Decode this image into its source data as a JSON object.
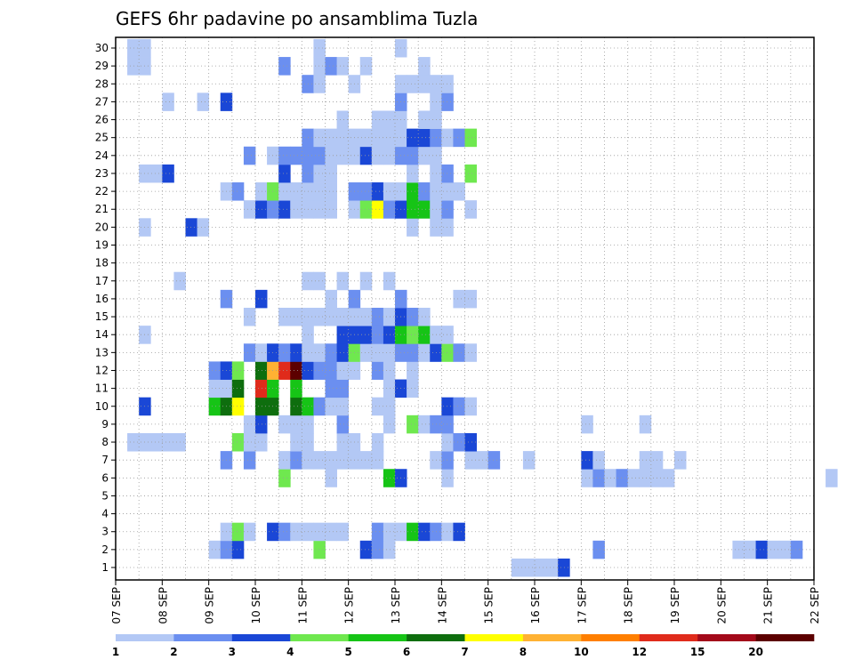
{
  "chart_data": {
    "type": "heatmap",
    "title": "GEFS 6hr padavine po ansamblima Tuzla",
    "y_ticks": [
      "1",
      "2",
      "3",
      "4",
      "5",
      "6",
      "7",
      "8",
      "9",
      "10",
      "11",
      "12",
      "13",
      "14",
      "15",
      "16",
      "17",
      "18",
      "19",
      "20",
      "21",
      "22",
      "23",
      "24",
      "25",
      "26",
      "27",
      "28",
      "29",
      "30"
    ],
    "x_ticks": [
      "07 SEP",
      "08 SEP",
      "09 SEP",
      "10 SEP",
      "11 SEP",
      "12 SEP",
      "13 SEP",
      "14 SEP",
      "15 SEP",
      "16 SEP",
      "17 SEP",
      "18 SEP",
      "19 SEP",
      "20 SEP",
      "21 SEP",
      "22 SEP"
    ],
    "x_range_days": [
      7,
      22
    ],
    "y_range_members": [
      0,
      30
    ],
    "grid": "dotted",
    "colorbar": {
      "labels": [
        "1",
        "2",
        "3",
        "4",
        "5",
        "6",
        "7",
        "8",
        "10",
        "12",
        "15",
        "20"
      ],
      "colors": [
        "#b3c8f5",
        "#6b8ff0",
        "#1a47d6",
        "#6fe84f",
        "#16c416",
        "#0e6e0e",
        "#ffff00",
        "#ffb233",
        "#ff7f00",
        "#e02b1b",
        "#a3091a",
        "#5c0000"
      ]
    },
    "cell_steps_per_day": 4,
    "cells": [
      [
        1,
        34,
        1
      ],
      [
        1,
        35,
        1
      ],
      [
        1,
        36,
        1
      ],
      [
        1,
        37,
        1
      ],
      [
        1,
        38,
        3
      ],
      [
        1,
        88,
        1
      ],
      [
        1,
        89,
        1
      ],
      [
        1,
        90,
        1
      ],
      [
        1,
        91,
        2
      ],
      [
        1,
        93,
        3
      ],
      [
        1,
        94,
        2
      ],
      [
        1,
        99,
        4
      ],
      [
        1,
        107,
        1
      ],
      [
        1,
        108,
        1
      ],
      [
        1,
        109,
        4
      ],
      [
        1,
        111,
        4
      ],
      [
        1,
        112,
        3
      ],
      [
        1,
        114,
        3
      ],
      [
        1,
        115,
        2
      ],
      [
        1,
        116,
        2
      ],
      [
        1,
        131,
        1
      ],
      [
        1,
        147,
        3
      ],
      [
        1,
        151,
        3
      ],
      [
        1,
        152,
        2
      ],
      [
        1,
        153,
        2
      ],
      [
        2,
        8,
        1
      ],
      [
        2,
        9,
        2
      ],
      [
        2,
        10,
        3
      ],
      [
        2,
        17,
        4
      ],
      [
        2,
        21,
        3
      ],
      [
        2,
        22,
        2
      ],
      [
        2,
        23,
        1
      ],
      [
        2,
        41,
        2
      ],
      [
        2,
        53,
        1
      ],
      [
        2,
        54,
        1
      ],
      [
        2,
        55,
        3
      ],
      [
        2,
        56,
        1
      ],
      [
        2,
        57,
        1
      ],
      [
        2,
        58,
        2
      ],
      [
        2,
        97,
        1
      ],
      [
        2,
        99,
        4
      ],
      [
        2,
        106,
        4
      ],
      [
        2,
        108,
        2
      ],
      [
        2,
        110,
        1
      ],
      [
        2,
        112,
        1
      ],
      [
        2,
        113,
        1
      ],
      [
        2,
        133,
        2
      ],
      [
        3,
        9,
        1
      ],
      [
        3,
        10,
        4
      ],
      [
        3,
        11,
        1
      ],
      [
        3,
        13,
        3
      ],
      [
        3,
        14,
        2
      ],
      [
        3,
        15,
        1
      ],
      [
        3,
        16,
        1
      ],
      [
        3,
        17,
        1
      ],
      [
        3,
        18,
        1
      ],
      [
        3,
        19,
        1
      ],
      [
        3,
        22,
        2
      ],
      [
        3,
        23,
        1
      ],
      [
        3,
        24,
        1
      ],
      [
        3,
        25,
        5
      ],
      [
        3,
        26,
        3
      ],
      [
        3,
        27,
        2
      ],
      [
        3,
        28,
        1
      ],
      [
        3,
        29,
        3
      ],
      [
        6,
        14,
        4
      ],
      [
        6,
        18,
        1
      ],
      [
        6,
        23,
        5
      ],
      [
        6,
        24,
        3
      ],
      [
        6,
        28,
        1
      ],
      [
        6,
        40,
        1
      ],
      [
        6,
        41,
        2
      ],
      [
        6,
        42,
        1
      ],
      [
        6,
        43,
        2
      ],
      [
        6,
        44,
        1
      ],
      [
        6,
        45,
        1
      ],
      [
        6,
        46,
        1
      ],
      [
        6,
        47,
        1
      ],
      [
        6,
        61,
        1
      ],
      [
        6,
        65,
        2
      ],
      [
        6,
        84,
        1
      ],
      [
        6,
        85,
        1
      ],
      [
        6,
        86,
        2
      ],
      [
        6,
        87,
        2
      ],
      [
        6,
        88,
        2
      ],
      [
        6,
        89,
        4
      ],
      [
        6,
        92,
        3
      ],
      [
        6,
        96,
        1
      ],
      [
        6,
        97,
        1
      ],
      [
        6,
        98,
        1
      ],
      [
        6,
        115,
        1
      ],
      [
        6,
        117,
        1
      ],
      [
        7,
        9,
        2
      ],
      [
        7,
        11,
        2
      ],
      [
        7,
        14,
        1
      ],
      [
        7,
        15,
        2
      ],
      [
        7,
        16,
        1
      ],
      [
        7,
        17,
        1
      ],
      [
        7,
        18,
        1
      ],
      [
        7,
        19,
        1
      ],
      [
        7,
        20,
        1
      ],
      [
        7,
        21,
        1
      ],
      [
        7,
        22,
        1
      ],
      [
        7,
        27,
        1
      ],
      [
        7,
        28,
        2
      ],
      [
        7,
        30,
        1
      ],
      [
        7,
        31,
        1
      ],
      [
        7,
        32,
        2
      ],
      [
        7,
        35,
        1
      ],
      [
        7,
        40,
        3
      ],
      [
        7,
        41,
        1
      ],
      [
        7,
        45,
        1
      ],
      [
        7,
        46,
        1
      ],
      [
        7,
        48,
        1
      ],
      [
        8,
        1,
        1
      ],
      [
        8,
        2,
        1
      ],
      [
        8,
        3,
        1
      ],
      [
        8,
        4,
        1
      ],
      [
        8,
        5,
        1
      ],
      [
        8,
        10,
        4
      ],
      [
        8,
        11,
        1
      ],
      [
        8,
        12,
        1
      ],
      [
        8,
        15,
        1
      ],
      [
        8,
        16,
        1
      ],
      [
        8,
        19,
        1
      ],
      [
        8,
        20,
        1
      ],
      [
        8,
        22,
        1
      ],
      [
        8,
        28,
        1
      ],
      [
        8,
        29,
        2
      ],
      [
        8,
        30,
        3
      ],
      [
        9,
        11,
        1
      ],
      [
        9,
        12,
        3
      ],
      [
        9,
        14,
        1
      ],
      [
        9,
        15,
        1
      ],
      [
        9,
        16,
        1
      ],
      [
        9,
        19,
        2
      ],
      [
        9,
        23,
        1
      ],
      [
        9,
        25,
        4
      ],
      [
        9,
        26,
        1
      ],
      [
        9,
        27,
        2
      ],
      [
        9,
        28,
        2
      ],
      [
        9,
        40,
        1
      ],
      [
        9,
        45,
        1
      ],
      [
        10,
        2,
        3
      ],
      [
        10,
        8,
        5
      ],
      [
        10,
        9,
        6
      ],
      [
        10,
        10,
        7
      ],
      [
        10,
        12,
        6
      ],
      [
        10,
        13,
        6
      ],
      [
        10,
        15,
        6
      ],
      [
        10,
        16,
        5
      ],
      [
        10,
        17,
        2
      ],
      [
        10,
        18,
        1
      ],
      [
        10,
        19,
        1
      ],
      [
        10,
        22,
        1
      ],
      [
        10,
        23,
        1
      ],
      [
        10,
        28,
        3
      ],
      [
        10,
        29,
        2
      ],
      [
        10,
        30,
        1
      ],
      [
        11,
        8,
        1
      ],
      [
        11,
        9,
        1
      ],
      [
        11,
        10,
        6
      ],
      [
        11,
        12,
        10
      ],
      [
        11,
        13,
        5
      ],
      [
        11,
        15,
        5
      ],
      [
        11,
        18,
        2
      ],
      [
        11,
        19,
        2
      ],
      [
        11,
        23,
        1
      ],
      [
        11,
        24,
        3
      ],
      [
        11,
        25,
        1
      ],
      [
        12,
        8,
        2
      ],
      [
        12,
        9,
        3
      ],
      [
        12,
        10,
        4
      ],
      [
        12,
        12,
        6
      ],
      [
        12,
        13,
        8
      ],
      [
        12,
        14,
        10
      ],
      [
        12,
        15,
        12
      ],
      [
        12,
        16,
        3
      ],
      [
        12,
        17,
        2
      ],
      [
        12,
        18,
        2
      ],
      [
        12,
        19,
        1
      ],
      [
        12,
        20,
        1
      ],
      [
        12,
        22,
        2
      ],
      [
        12,
        23,
        1
      ],
      [
        12,
        25,
        1
      ],
      [
        13,
        11,
        2
      ],
      [
        13,
        12,
        1
      ],
      [
        13,
        13,
        3
      ],
      [
        13,
        14,
        2
      ],
      [
        13,
        15,
        3
      ],
      [
        13,
        16,
        1
      ],
      [
        13,
        17,
        1
      ],
      [
        13,
        18,
        2
      ],
      [
        13,
        19,
        3
      ],
      [
        13,
        20,
        4
      ],
      [
        13,
        21,
        1
      ],
      [
        13,
        22,
        1
      ],
      [
        13,
        23,
        1
      ],
      [
        13,
        24,
        2
      ],
      [
        13,
        25,
        2
      ],
      [
        13,
        26,
        1
      ],
      [
        13,
        27,
        3
      ],
      [
        13,
        28,
        4
      ],
      [
        13,
        29,
        2
      ],
      [
        13,
        30,
        1
      ],
      [
        14,
        2,
        1
      ],
      [
        14,
        16,
        1
      ],
      [
        14,
        19,
        3
      ],
      [
        14,
        20,
        3
      ],
      [
        14,
        21,
        3
      ],
      [
        14,
        22,
        2
      ],
      [
        14,
        23,
        3
      ],
      [
        14,
        24,
        5
      ],
      [
        14,
        25,
        4
      ],
      [
        14,
        26,
        5
      ],
      [
        14,
        27,
        1
      ],
      [
        14,
        28,
        1
      ],
      [
        15,
        11,
        1
      ],
      [
        15,
        14,
        1
      ],
      [
        15,
        15,
        1
      ],
      [
        15,
        16,
        1
      ],
      [
        15,
        17,
        1
      ],
      [
        15,
        18,
        1
      ],
      [
        15,
        19,
        1
      ],
      [
        15,
        20,
        1
      ],
      [
        15,
        21,
        1
      ],
      [
        15,
        22,
        2
      ],
      [
        15,
        23,
        1
      ],
      [
        15,
        24,
        3
      ],
      [
        15,
        25,
        2
      ],
      [
        15,
        26,
        1
      ],
      [
        16,
        9,
        2
      ],
      [
        16,
        12,
        3
      ],
      [
        16,
        18,
        1
      ],
      [
        16,
        20,
        2
      ],
      [
        16,
        24,
        2
      ],
      [
        16,
        29,
        1
      ],
      [
        16,
        30,
        1
      ],
      [
        17,
        5,
        1
      ],
      [
        17,
        16,
        1
      ],
      [
        17,
        17,
        1
      ],
      [
        17,
        19,
        1
      ],
      [
        17,
        21,
        1
      ],
      [
        17,
        23,
        1
      ],
      [
        20,
        2,
        1
      ],
      [
        20,
        6,
        3
      ],
      [
        20,
        7,
        1
      ],
      [
        20,
        25,
        1
      ],
      [
        20,
        27,
        1
      ],
      [
        20,
        28,
        1
      ],
      [
        21,
        11,
        1
      ],
      [
        21,
        12,
        3
      ],
      [
        21,
        13,
        2
      ],
      [
        21,
        14,
        3
      ],
      [
        21,
        15,
        1
      ],
      [
        21,
        16,
        1
      ],
      [
        21,
        17,
        1
      ],
      [
        21,
        18,
        1
      ],
      [
        21,
        20,
        1
      ],
      [
        21,
        21,
        4
      ],
      [
        21,
        22,
        7
      ],
      [
        21,
        23,
        2
      ],
      [
        21,
        24,
        3
      ],
      [
        21,
        25,
        5
      ],
      [
        21,
        26,
        5
      ],
      [
        21,
        27,
        1
      ],
      [
        21,
        28,
        2
      ],
      [
        21,
        30,
        1
      ],
      [
        22,
        9,
        1
      ],
      [
        22,
        10,
        2
      ],
      [
        22,
        12,
        1
      ],
      [
        22,
        13,
        4
      ],
      [
        22,
        14,
        1
      ],
      [
        22,
        15,
        1
      ],
      [
        22,
        16,
        1
      ],
      [
        22,
        17,
        1
      ],
      [
        22,
        18,
        1
      ],
      [
        22,
        20,
        2
      ],
      [
        22,
        21,
        2
      ],
      [
        22,
        22,
        3
      ],
      [
        22,
        23,
        1
      ],
      [
        22,
        24,
        1
      ],
      [
        22,
        25,
        5
      ],
      [
        22,
        26,
        2
      ],
      [
        22,
        27,
        1
      ],
      [
        22,
        28,
        1
      ],
      [
        22,
        29,
        1
      ],
      [
        23,
        2,
        1
      ],
      [
        23,
        3,
        1
      ],
      [
        23,
        4,
        3
      ],
      [
        23,
        14,
        3
      ],
      [
        23,
        16,
        2
      ],
      [
        23,
        17,
        1
      ],
      [
        23,
        18,
        1
      ],
      [
        23,
        25,
        1
      ],
      [
        23,
        27,
        1
      ],
      [
        23,
        28,
        2
      ],
      [
        23,
        30,
        4
      ],
      [
        24,
        11,
        2
      ],
      [
        24,
        13,
        1
      ],
      [
        24,
        14,
        2
      ],
      [
        24,
        15,
        2
      ],
      [
        24,
        16,
        2
      ],
      [
        24,
        17,
        2
      ],
      [
        24,
        18,
        1
      ],
      [
        24,
        19,
        1
      ],
      [
        24,
        20,
        1
      ],
      [
        24,
        21,
        3
      ],
      [
        24,
        22,
        1
      ],
      [
        24,
        23,
        1
      ],
      [
        24,
        24,
        2
      ],
      [
        24,
        25,
        2
      ],
      [
        24,
        26,
        1
      ],
      [
        24,
        27,
        1
      ],
      [
        25,
        16,
        2
      ],
      [
        25,
        17,
        1
      ],
      [
        25,
        18,
        1
      ],
      [
        25,
        19,
        1
      ],
      [
        25,
        20,
        1
      ],
      [
        25,
        21,
        1
      ],
      [
        25,
        22,
        1
      ],
      [
        25,
        23,
        1
      ],
      [
        25,
        24,
        1
      ],
      [
        25,
        25,
        3
      ],
      [
        25,
        26,
        3
      ],
      [
        25,
        27,
        2
      ],
      [
        25,
        28,
        1
      ],
      [
        25,
        29,
        2
      ],
      [
        25,
        30,
        4
      ],
      [
        26,
        19,
        1
      ],
      [
        26,
        22,
        1
      ],
      [
        26,
        23,
        1
      ],
      [
        26,
        24,
        1
      ],
      [
        26,
        26,
        1
      ],
      [
        26,
        27,
        1
      ],
      [
        27,
        4,
        1
      ],
      [
        27,
        7,
        1
      ],
      [
        27,
        9,
        3
      ],
      [
        27,
        24,
        2
      ],
      [
        27,
        27,
        1
      ],
      [
        27,
        28,
        2
      ],
      [
        28,
        16,
        2
      ],
      [
        28,
        17,
        1
      ],
      [
        28,
        20,
        1
      ],
      [
        28,
        24,
        1
      ],
      [
        28,
        25,
        1
      ],
      [
        28,
        26,
        1
      ],
      [
        28,
        27,
        1
      ],
      [
        28,
        28,
        1
      ],
      [
        29,
        1,
        1
      ],
      [
        29,
        2,
        1
      ],
      [
        29,
        14,
        2
      ],
      [
        29,
        17,
        1
      ],
      [
        29,
        18,
        2
      ],
      [
        29,
        19,
        1
      ],
      [
        29,
        21,
        1
      ],
      [
        29,
        26,
        1
      ],
      [
        30,
        1,
        1
      ],
      [
        30,
        2,
        1
      ],
      [
        30,
        17,
        1
      ],
      [
        30,
        24,
        1
      ]
    ]
  }
}
